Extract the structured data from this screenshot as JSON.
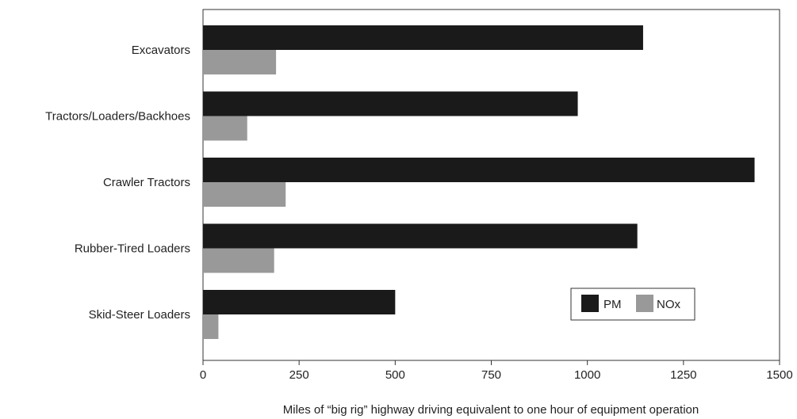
{
  "chart_data": {
    "type": "bar",
    "orientation": "horizontal",
    "categories": [
      "Excavators",
      "Tractors/Loaders/Backhoes",
      "Crawler Tractors",
      "Rubber-Tired Loaders",
      "Skid-Steer Loaders"
    ],
    "series": [
      {
        "name": "PM",
        "color": "#1a1a1a",
        "values": [
          1145,
          975,
          1435,
          1130,
          500
        ]
      },
      {
        "name": "NOx",
        "color": "#999999",
        "values": [
          190,
          115,
          215,
          185,
          40
        ]
      }
    ],
    "xlim": [
      0,
      1500
    ],
    "xticks": [
      0,
      250,
      500,
      750,
      1000,
      1250,
      1500
    ],
    "xlabel": "Miles of “big rig” highway driving equivalent to one hour of equipment operation",
    "ylabel": "",
    "grid": false,
    "legend": {
      "placement": "bottom-right inside plot",
      "entries": [
        "PM",
        "NOx"
      ]
    }
  }
}
